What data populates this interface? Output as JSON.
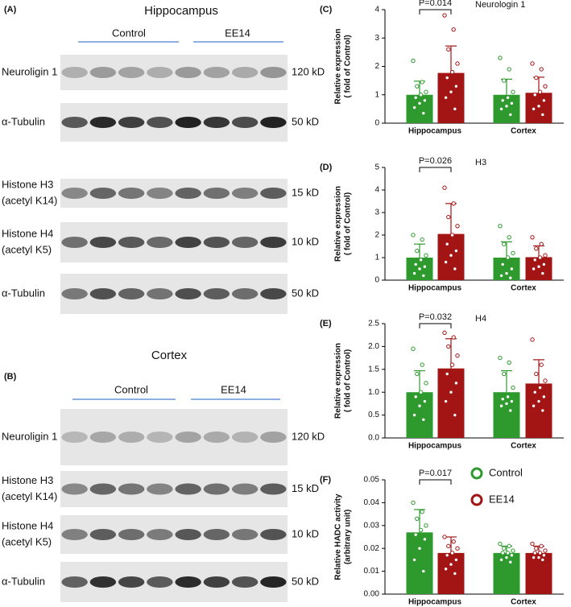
{
  "blots": [
    {
      "panel": "(A)",
      "title": "Hippocampus",
      "groups": [
        "Control",
        "EE14"
      ],
      "rows": [
        {
          "label": [
            "Neuroligin 1"
          ],
          "size": "120 kD"
        },
        {
          "label": [
            "α-Tubulin"
          ],
          "size": "50 kD"
        },
        {
          "label": [
            "Histone H3",
            "(acetyl K14)"
          ],
          "size": "15 kD"
        },
        {
          "label": [
            "Histone H4",
            "(acetyl K5)"
          ],
          "size": "10 kD"
        },
        {
          "label": [
            "α-Tubulin"
          ],
          "size": "50 kD"
        }
      ]
    },
    {
      "panel": "(B)",
      "title": "Cortex",
      "groups": [
        "Control",
        "EE14"
      ],
      "rows": [
        {
          "label": [
            "Neuroligin 1"
          ],
          "size": "120 kD"
        },
        {
          "label": [
            "Histone H3",
            "(acetyl K14)"
          ],
          "size": "15 kD"
        },
        {
          "label": [
            "Histone H4",
            "(acetyl K5)"
          ],
          "size": "10 kD"
        },
        {
          "label": [
            "α-Tubulin"
          ],
          "size": "50 kD"
        }
      ]
    }
  ],
  "chart_data": [
    {
      "type": "bar",
      "panel": "(C)",
      "annotation": "Neurologin 1",
      "p_label": "P=0.014",
      "ylabel": [
        "Relative expression",
        "( fold of Control)"
      ],
      "categories": [
        "Hippocampus",
        "Cortex"
      ],
      "ylim": [
        0,
        4
      ],
      "yticks": [
        0,
        1,
        2,
        3,
        4
      ],
      "series": [
        {
          "color": "#2e9a2e",
          "values": [
            1.0,
            1.0
          ],
          "errors": [
            0.48,
            0.55
          ],
          "points": [
            [
              2.2,
              1.45,
              1.3,
              1.1,
              1.0,
              0.9,
              0.8,
              0.7,
              0.55,
              0.35
            ],
            [
              2.3,
              1.9,
              1.5,
              1.1,
              0.9,
              0.8,
              0.7,
              0.6,
              0.5,
              0.3
            ]
          ]
        },
        {
          "color": "#a31515",
          "values": [
            1.77,
            1.07
          ],
          "errors": [
            0.95,
            0.55
          ],
          "points": [
            [
              3.8,
              3.3,
              2.6,
              2.1,
              1.8,
              1.6,
              1.3,
              1.1,
              0.9,
              0.5
            ],
            [
              2.1,
              1.9,
              1.6,
              1.3,
              1.1,
              1.0,
              0.8,
              0.6,
              0.5,
              0.3
            ]
          ]
        }
      ]
    },
    {
      "type": "bar",
      "panel": "(D)",
      "annotation": "H3",
      "p_label": "P=0.026",
      "ylabel": [
        "Relative expression",
        "( fold of Control)"
      ],
      "categories": [
        "Hippocampus",
        "Cortex"
      ],
      "ylim": [
        0,
        5
      ],
      "yticks": [
        0,
        1,
        2,
        3,
        4,
        5
      ],
      "series": [
        {
          "color": "#2e9a2e",
          "values": [
            1.0,
            1.0
          ],
          "errors": [
            0.6,
            0.7
          ],
          "points": [
            [
              2.0,
              1.8,
              1.3,
              1.1,
              0.9,
              0.7,
              0.6,
              0.5,
              0.3,
              0.2
            ],
            [
              2.4,
              1.9,
              1.6,
              1.2,
              1.0,
              0.7,
              0.5,
              0.3,
              0.2,
              0.1
            ]
          ]
        },
        {
          "color": "#a31515",
          "values": [
            2.05,
            1.02
          ],
          "errors": [
            1.35,
            0.5
          ],
          "points": [
            [
              4.1,
              3.4,
              2.8,
              2.4,
              2.0,
              1.6,
              1.3,
              1.1,
              0.8,
              0.5
            ],
            [
              1.9,
              1.6,
              1.4,
              1.1,
              1.0,
              0.9,
              0.7,
              0.6,
              0.5,
              0.3
            ]
          ]
        }
      ]
    },
    {
      "type": "bar",
      "panel": "(E)",
      "annotation": "H4",
      "p_label": "P=0.032",
      "ylabel": [
        "Relative expression",
        "( fold of Control)"
      ],
      "categories": [
        "Hippocampus",
        "Cortex"
      ],
      "ylim": [
        0,
        2.5
      ],
      "yticks": [
        {
          "value": 0,
          "label": "0.0"
        },
        {
          "value": 0.5,
          "label": "0.5"
        },
        {
          "value": 1,
          "label": "1.0"
        },
        {
          "value": 1.5,
          "label": "1.5"
        },
        {
          "value": 2,
          "label": "2.0"
        },
        {
          "value": 2.5,
          "label": "2.5"
        }
      ],
      "series": [
        {
          "color": "#2e9a2e",
          "values": [
            1.0,
            1.0
          ],
          "errors": [
            0.47,
            0.47
          ],
          "points": [
            [
              1.95,
              1.6,
              1.4,
              1.2,
              1.0,
              0.9,
              0.8,
              0.7,
              0.5,
              0.4
            ],
            [
              1.75,
              1.65,
              1.4,
              1.1,
              0.9,
              0.85,
              0.8,
              0.75,
              0.7,
              0.6
            ]
          ]
        },
        {
          "color": "#a31515",
          "values": [
            1.52,
            1.19
          ],
          "errors": [
            0.65,
            0.52
          ],
          "points": [
            [
              2.3,
              2.2,
              2.0,
              1.8,
              1.6,
              1.4,
              1.2,
              1.0,
              0.8,
              0.5
            ],
            [
              2.15,
              1.6,
              1.4,
              1.25,
              1.1,
              1.0,
              0.9,
              0.8,
              0.7,
              0.6
            ]
          ]
        }
      ]
    },
    {
      "type": "bar",
      "panel": "(F)",
      "p_label": "P=0.017",
      "ylabel": [
        "Relative HADC activity",
        "(arbitrary unit)"
      ],
      "categories": [
        "Hippocampus",
        "Cortex"
      ],
      "ylim": [
        0,
        0.05
      ],
      "yticks": [
        {
          "value": 0,
          "label": "0.00"
        },
        {
          "value": 0.01,
          "label": "0.01"
        },
        {
          "value": 0.02,
          "label": "0.02"
        },
        {
          "value": 0.03,
          "label": "0.03"
        },
        {
          "value": 0.04,
          "label": "0.04"
        },
        {
          "value": 0.05,
          "label": "0.05"
        }
      ],
      "legend": "upper right",
      "series": [
        {
          "name": "Control",
          "color": "#2e9a2e",
          "values": [
            0.027,
            0.018
          ],
          "errors": [
            0.01,
            0.003
          ],
          "points": [
            [
              0.04,
              0.036,
              0.033,
              0.03,
              0.028,
              0.026,
              0.024,
              0.02,
              0.015,
              0.01
            ],
            [
              0.022,
              0.021,
              0.02,
              0.019,
              0.018,
              0.018,
              0.017,
              0.016,
              0.015,
              0.014
            ]
          ]
        },
        {
          "name": "EE14",
          "color": "#a31515",
          "values": [
            0.018,
            0.018
          ],
          "errors": [
            0.007,
            0.003
          ],
          "points": [
            [
              0.025,
              0.023,
              0.021,
              0.02,
              0.018,
              0.017,
              0.015,
              0.013,
              0.011,
              0.009
            ],
            [
              0.022,
              0.021,
              0.02,
              0.019,
              0.018,
              0.018,
              0.017,
              0.016,
              0.016,
              0.015
            ]
          ]
        }
      ]
    }
  ]
}
